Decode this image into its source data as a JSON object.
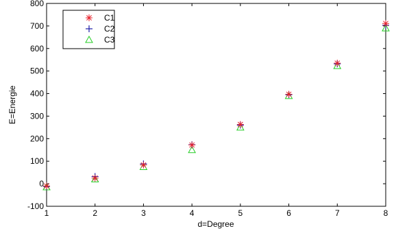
{
  "chart_data": {
    "type": "scatter",
    "title": "",
    "xlabel": "d=Degree",
    "ylabel": "E=Energie",
    "xlim": [
      1,
      8
    ],
    "ylim": [
      -100,
      800
    ],
    "xticks": [
      1,
      2,
      3,
      4,
      5,
      6,
      7,
      8
    ],
    "yticks": [
      -100,
      0,
      100,
      200,
      300,
      400,
      500,
      600,
      700,
      800
    ],
    "x": [
      1,
      2,
      3,
      4,
      5,
      6,
      7,
      8
    ],
    "legend_position": "top-left",
    "grid": false,
    "series": [
      {
        "name": "C1",
        "marker": "asterisk",
        "color": "#e8212b",
        "values": [
          -10,
          25,
          83,
          172,
          263,
          397,
          535,
          711
        ]
      },
      {
        "name": "C2",
        "marker": "plus",
        "color": "#1c1ca8",
        "values": [
          -12,
          32,
          88,
          173,
          260,
          395,
          532,
          703
        ]
      },
      {
        "name": "C3",
        "marker": "triangle",
        "color": "#22cc22",
        "values": [
          -15,
          20,
          75,
          150,
          250,
          390,
          523,
          690
        ]
      }
    ]
  }
}
